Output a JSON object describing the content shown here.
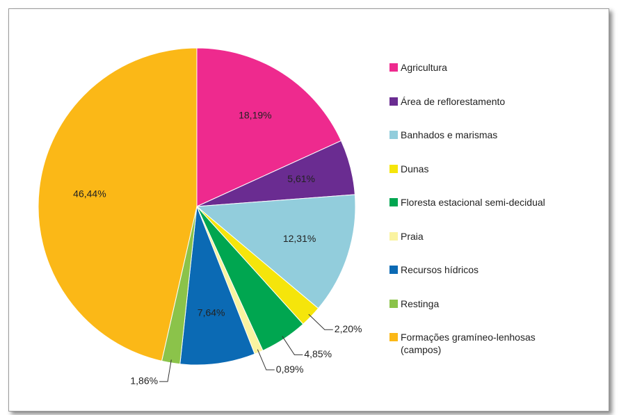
{
  "chart_data": {
    "type": "pie",
    "categories": [
      "Agricultura",
      "Área de reflorestamento",
      "Banhados e marismas",
      "Dunas",
      "Floresta estacional semi-decidual",
      "Praia",
      "Recursos hídricos",
      "Restinga",
      "Formações gramíneo-lenhosas (campos)"
    ],
    "values": [
      18.19,
      5.61,
      12.31,
      2.2,
      4.85,
      0.89,
      7.64,
      1.86,
      46.44
    ],
    "value_labels": [
      "18,19%",
      "5,61%",
      "12,31%",
      "2,20%",
      "4,85%",
      "0,89%",
      "7,64%",
      "1,86%",
      "46,44%"
    ],
    "colors": [
      "#ee2a8e",
      "#6a2c91",
      "#92cddc",
      "#f5e50b",
      "#00a650",
      "#faf3a0",
      "#0b6ab4",
      "#8bc34a",
      "#fbb817"
    ],
    "legend": "right"
  }
}
